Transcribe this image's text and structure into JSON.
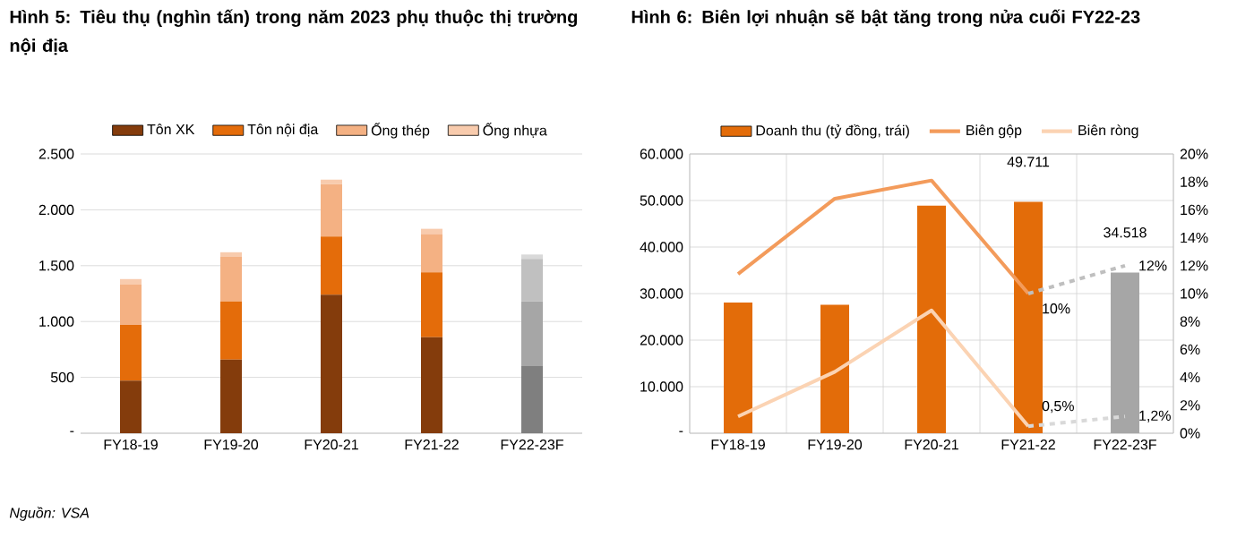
{
  "chart_data": [
    {
      "type": "bar",
      "title": "Hình 5: Tiêu thụ (nghìn tấn) trong năm 2023 phụ thuộc thị trường nội địa",
      "stacked": true,
      "grid": "y",
      "legend": "top",
      "categories": [
        "FY18-19",
        "FY19-20",
        "FY20-21",
        "FY21-22",
        "FY22-23F"
      ],
      "ylim": [
        0,
        2500
      ],
      "yticks": [
        {
          "value": 0,
          "label": "-"
        },
        500,
        {
          "value": 1000,
          "label": "1.000"
        },
        {
          "value": 1500,
          "label": "1.500"
        },
        {
          "value": 2000,
          "label": "2.000"
        },
        {
          "value": 2500,
          "label": "2.500"
        }
      ],
      "series": [
        {
          "name": "Tôn XK",
          "color": "#843c0c",
          "colors": [
            "#843c0c",
            "#843c0c",
            "#843c0c",
            "#843c0c",
            "#7f7f7f"
          ],
          "values": [
            470,
            660,
            1240,
            860,
            600
          ]
        },
        {
          "name": "Tôn nội địa",
          "color": "#e46c0a",
          "colors": [
            "#e46c0a",
            "#e46c0a",
            "#e46c0a",
            "#e46c0a",
            "#a6a6a6"
          ],
          "values": [
            500,
            520,
            520,
            580,
            580
          ]
        },
        {
          "name": "Ống thép",
          "color": "#f4b183",
          "colors": [
            "#f4b183",
            "#f4b183",
            "#f4b183",
            "#f4b183",
            "#c0c0c0"
          ],
          "values": [
            360,
            400,
            470,
            340,
            380
          ]
        },
        {
          "name": "Ống nhựa",
          "color": "#f8cbad",
          "colors": [
            "#f8cbad",
            "#f8cbad",
            "#f8cbad",
            "#f8cbad",
            "#d9d9d9"
          ],
          "values": [
            50,
            40,
            40,
            50,
            40
          ]
        }
      ],
      "annotations": [
        "Nguồn: VSA"
      ]
    },
    {
      "type": "bar",
      "title": "Hình 6: Biên lợi nhuận sẽ bật tăng trong nửa cuối FY22-23",
      "grid": true,
      "legend": "top",
      "categories": [
        "FY18-19",
        "FY19-20",
        "FY20-21",
        "FY21-22",
        "FY22-23F"
      ],
      "ylim": [
        0,
        60000
      ],
      "yticks": [
        {
          "value": 0,
          "label": "-"
        },
        {
          "value": 10000,
          "label": "10.000"
        },
        {
          "value": 20000,
          "label": "20.000"
        },
        {
          "value": 30000,
          "label": "30.000"
        },
        {
          "value": 40000,
          "label": "40.000"
        },
        {
          "value": 50000,
          "label": "50.000"
        },
        {
          "value": 60000,
          "label": "60.000"
        }
      ],
      "y2lim": [
        0,
        20
      ],
      "y2ticks": [
        {
          "value": 0,
          "label": "0%"
        },
        {
          "value": 2,
          "label": "2%"
        },
        {
          "value": 4,
          "label": "4%"
        },
        {
          "value": 6,
          "label": "6%"
        },
        {
          "value": 8,
          "label": "8%"
        },
        {
          "value": 10,
          "label": "10%"
        },
        {
          "value": 12,
          "label": "12%"
        },
        {
          "value": 14,
          "label": "14%"
        },
        {
          "value": 16,
          "label": "16%"
        },
        {
          "value": 18,
          "label": "18%"
        },
        {
          "value": 20,
          "label": "20%"
        }
      ],
      "series": [
        {
          "name": "Doanh thu (tỷ đồng, trái)",
          "type": "bar",
          "color": "#e36c09",
          "colors": [
            "#e36c09",
            "#e36c09",
            "#e36c09",
            "#e36c09",
            "#a6a6a6"
          ],
          "values": [
            28100,
            27600,
            48900,
            49711,
            34518
          ],
          "value_labels": [
            null,
            null,
            null,
            "49.711",
            "34.518"
          ]
        },
        {
          "name": "Biên gộp",
          "type": "line",
          "axis": "y2",
          "color": "#f39b5b",
          "values": [
            11.4,
            16.8,
            18.1,
            10,
            null
          ],
          "value_labels": [
            null,
            null,
            null,
            "10%",
            null
          ]
        },
        {
          "name": "Biên ròng",
          "type": "line",
          "axis": "y2",
          "color": "#fbd3b3",
          "values": [
            1.2,
            4.4,
            8.8,
            0.5,
            null
          ],
          "value_labels": [
            null,
            null,
            null,
            "0,5%",
            null
          ]
        },
        {
          "type": "line",
          "axis": "y2",
          "color": "#bfbfbf",
          "line_style": "dashed",
          "values": [
            null,
            null,
            null,
            10,
            12
          ],
          "value_labels": [
            null,
            null,
            null,
            null,
            "12%"
          ]
        },
        {
          "type": "line",
          "axis": "y2",
          "color": "#d9d9d9",
          "line_style": "dashed",
          "values": [
            null,
            null,
            null,
            0.5,
            1.2
          ],
          "value_labels": [
            null,
            null,
            null,
            null,
            "1,2%"
          ]
        }
      ]
    }
  ]
}
